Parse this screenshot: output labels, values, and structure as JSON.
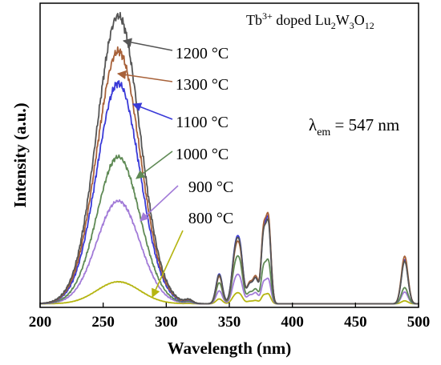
{
  "chart_data": {
    "type": "line",
    "title_prefix": "Tb",
    "title_sup": "3+",
    "title_mid": " doped Lu",
    "title_sub1": "2",
    "title_w": "W",
    "title_sub2": "3",
    "title_o": "O",
    "title_sub3": "12",
    "xlabel": "Wavelength (nm)",
    "ylabel": "Intensity (a.u.)",
    "xlim": [
      200,
      500
    ],
    "ylim": [
      0,
      1.0
    ],
    "x_ticks": [
      200,
      250,
      300,
      350,
      400,
      450,
      500
    ],
    "lambda_symbol": "λ",
    "lambda_sub": "em",
    "lambda_value": " = 547 nm",
    "grid": false,
    "series": [
      {
        "name": "800 °C",
        "color": "#b5b512",
        "peak": 0.075,
        "pA": 0.03,
        "pB": 0.018,
        "pC": 0.032,
        "pD": 0.01
      },
      {
        "name": "900 °C",
        "color": "#a27bd8",
        "peak": 0.35,
        "pA": 0.08,
        "pB": 0.06,
        "pC": 0.08,
        "pD": 0.04
      },
      {
        "name": "1000 °C",
        "color": "#5f8a55",
        "peak": 0.5,
        "pA": 0.13,
        "pB": 0.08,
        "pC": 0.14,
        "pD": 0.055
      },
      {
        "name": "1100 °C",
        "color": "#3a3ad8",
        "peak": 0.75,
        "pA": 0.185,
        "pB": 0.14,
        "pC": 0.275,
        "pD": 0.15
      },
      {
        "name": "1300 °C",
        "color": "#a8623a",
        "peak": 0.86,
        "pA": 0.17,
        "pB": 0.15,
        "pC": 0.285,
        "pD": 0.162
      },
      {
        "name": "1200 °C",
        "color": "#555555",
        "peak": 0.98,
        "pA": 0.18,
        "pB": 0.14,
        "pC": 0.265,
        "pD": 0.145
      }
    ]
  }
}
